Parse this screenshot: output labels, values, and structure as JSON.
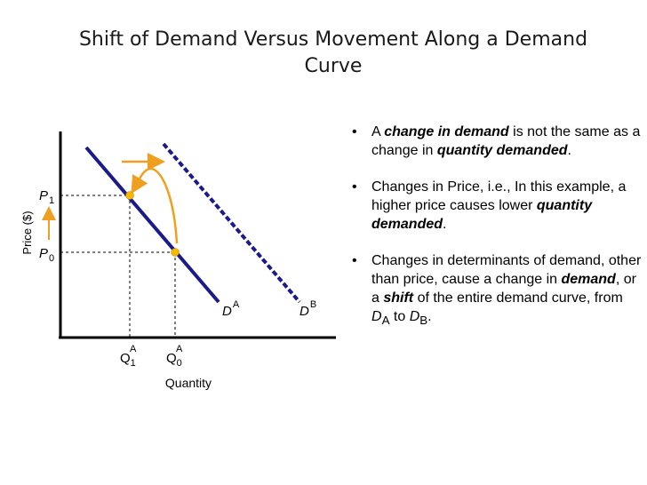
{
  "slide": {
    "title_line1": "Shift of Demand Versus Movement Along a Demand",
    "title_line2": "Curve"
  },
  "diagram": {
    "y_axis_label": "Price ($)",
    "x_axis_label": "Quantity",
    "p1": {
      "main": "P",
      "sub": "1"
    },
    "p0": {
      "main": "P",
      "sub": "0"
    },
    "q1": {
      "main": "Q",
      "sub": "1",
      "sup": "A"
    },
    "q0": {
      "main": "Q",
      "sub": "0",
      "sup": "A"
    },
    "da": {
      "main": "D",
      "sup": "A"
    },
    "db": {
      "main": "D",
      "sup": "B"
    },
    "colors": {
      "demand_curve": "#1a1a8c",
      "arrow": "#f0a020",
      "point": "#f5b800",
      "axis": "#000000"
    }
  },
  "bullets": [
    {
      "seg1": "A ",
      "seg2": "change in demand",
      "seg3": " is not the same as a change in ",
      "seg4": "quantity demanded",
      "seg5": "."
    },
    {
      "seg1": "Changes in Price, i.e., In this example, a higher price causes lower ",
      "seg2": "quantity demanded",
      "seg3": "."
    },
    {
      "seg1": "Changes in determinants of demand, other than price, cause a change in ",
      "seg2": "demand",
      "seg3": ", or a ",
      "seg4": "shift",
      "seg5": " of the entire demand curve, from ",
      "seg6": "D",
      "seg7": "A",
      "seg8": " to ",
      "seg9": "D",
      "seg10": "B",
      "seg11": "."
    }
  ]
}
